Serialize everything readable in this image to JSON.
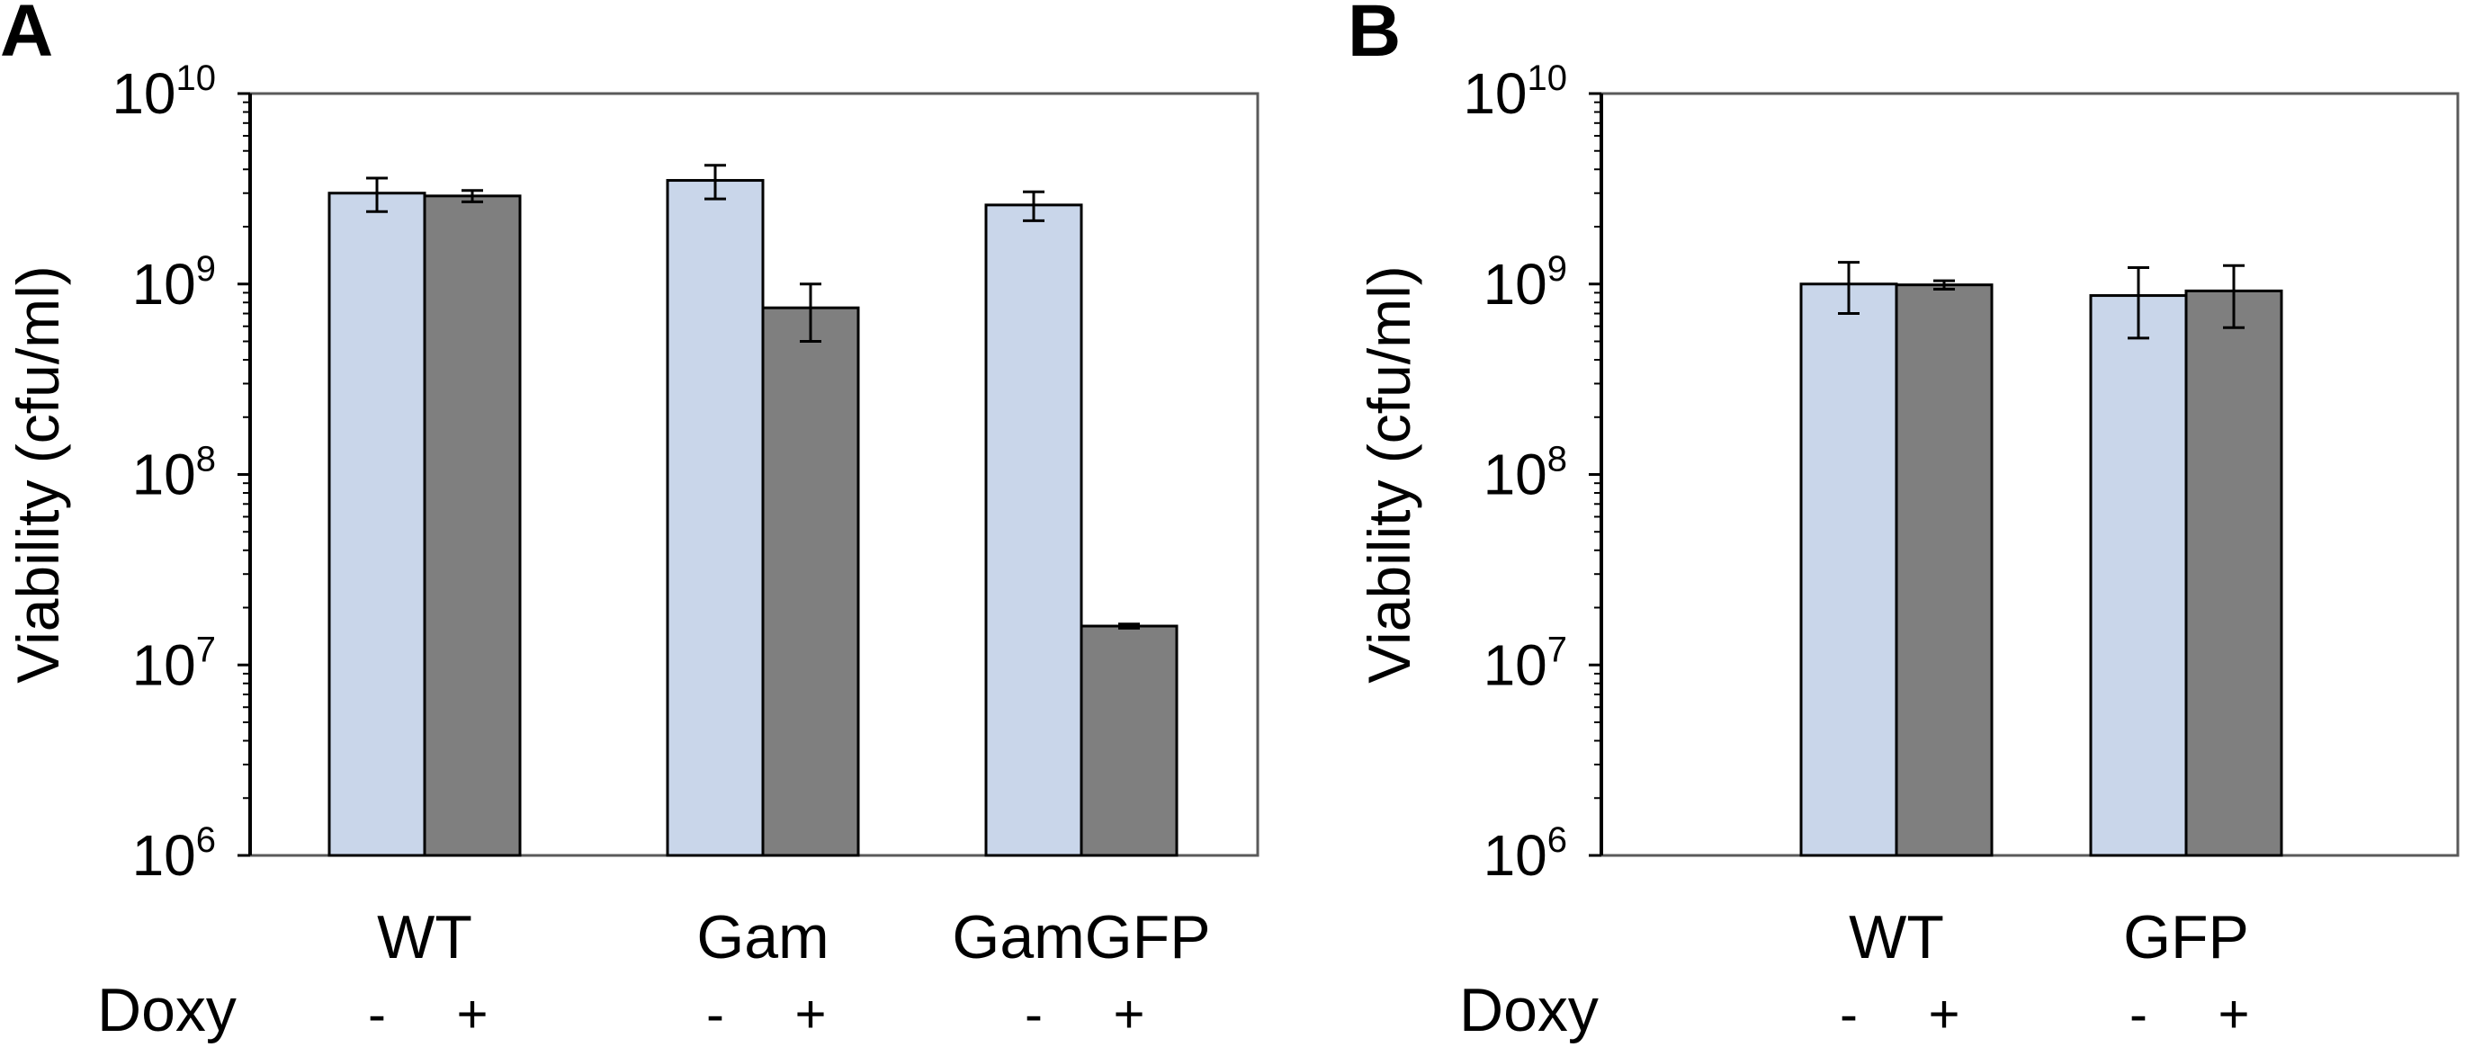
{
  "chart_data": [
    {
      "panel": "A",
      "type": "bar",
      "ylabel": "Viability (cfu/ml)",
      "yscale": "log",
      "ylim": [
        1000000,
        10000000000
      ],
      "yticks": [
        {
          "base": "10",
          "exp": "6"
        },
        {
          "base": "10",
          "exp": "7"
        },
        {
          "base": "10",
          "exp": "8"
        },
        {
          "base": "10",
          "exp": "9"
        },
        {
          "base": "10",
          "exp": "10"
        }
      ],
      "grid": false,
      "legend": "none",
      "row_label": "Doxy",
      "categories": [
        "WT",
        "Gam",
        "GamGFP"
      ],
      "series": [
        {
          "sign": "-",
          "color": "#c9d6ea",
          "values": [
            3000000000,
            3500000000,
            2600000000
          ],
          "errors": [
            600000000,
            700000000,
            450000000
          ]
        },
        {
          "sign": "+",
          "color": "#7f7f7f",
          "values": [
            2900000000,
            750000000,
            16000000
          ],
          "errors": [
            200000000,
            250000000,
            400000
          ]
        }
      ]
    },
    {
      "panel": "B",
      "type": "bar",
      "ylabel": "Viability (cfu/ml)",
      "yscale": "log",
      "ylim": [
        1000000,
        10000000000
      ],
      "yticks": [
        {
          "base": "10",
          "exp": "6"
        },
        {
          "base": "10",
          "exp": "7"
        },
        {
          "base": "10",
          "exp": "8"
        },
        {
          "base": "10",
          "exp": "9"
        },
        {
          "base": "10",
          "exp": "10"
        }
      ],
      "grid": false,
      "legend": "none",
      "row_label": "Doxy",
      "categories": [
        "WT",
        "GFP"
      ],
      "series": [
        {
          "sign": "-",
          "color": "#c9d6ea",
          "values": [
            1000000000,
            870000000
          ],
          "errors": [
            300000000,
            350000000
          ]
        },
        {
          "sign": "+",
          "color": "#7f7f7f",
          "values": [
            990000000,
            920000000
          ],
          "errors": [
            50000000,
            330000000
          ]
        }
      ]
    }
  ]
}
